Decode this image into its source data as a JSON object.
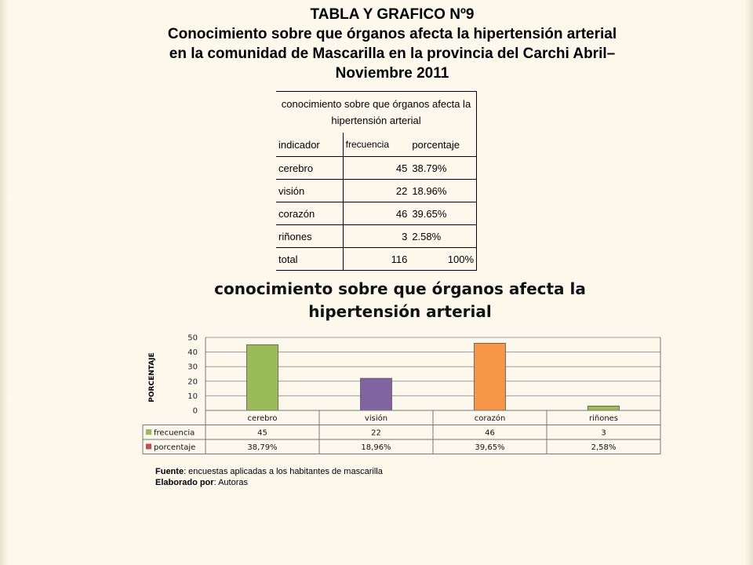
{
  "header": {
    "line1": "TABLA Y GRAFICO Nº9",
    "line2": "Conocimiento sobre que órganos afecta la hipertensión arterial",
    "line3": "en la comunidad de Mascarilla en la provincia del Carchi Abril–",
    "line4": "Noviembre 2011"
  },
  "table": {
    "caption": "conocimiento sobre que órganos afecta la hipertensión arterial",
    "headers": {
      "indicator": "indicador",
      "frequency": "frecuencia",
      "percentage": "porcentaje"
    },
    "rows": [
      {
        "indicator": "cerebro",
        "frequency": "45",
        "percentage": "38.79%"
      },
      {
        "indicator": "visión",
        "frequency": "22",
        "percentage": "18.96%"
      },
      {
        "indicator": "corazón",
        "frequency": "46",
        "percentage": "39.65%"
      },
      {
        "indicator": "riñones",
        "frequency": "3",
        "percentage": "2.58%"
      }
    ],
    "total": {
      "indicator": "total",
      "frequency": "116",
      "percentage": "100%"
    }
  },
  "chart_data": {
    "type": "bar",
    "title_line1": "conocimiento sobre que órganos afecta la",
    "title_line2": "hipertensión arterial",
    "ylabel": "PORCENTAJE",
    "ylim": [
      0,
      50
    ],
    "yticks": [
      0,
      10,
      20,
      30,
      40,
      50
    ],
    "grid": true,
    "categories": [
      "cerebro",
      "visión",
      "corazón",
      "riñones"
    ],
    "bar_colors": [
      "#9bbb59",
      "#8064a2",
      "#f79646",
      "#9bbb59"
    ],
    "series": [
      {
        "name": "frecuencia",
        "values": [
          45,
          22,
          46,
          3
        ],
        "labels": [
          "45",
          "22",
          "46",
          "3"
        ],
        "color": "#9bbb59"
      },
      {
        "name": "porcentaje",
        "values": [
          38.79,
          18.96,
          39.65,
          2.58
        ],
        "labels": [
          "38,79%",
          "18,96%",
          "39,65%",
          "2,58%"
        ],
        "color": "#c0504d"
      }
    ]
  },
  "footer": {
    "source_label": "Fuente",
    "source_text": ": encuestas aplicadas a los habitantes de mascarilla",
    "author_label": "Elaborado por",
    "author_text": ": Autoras"
  }
}
